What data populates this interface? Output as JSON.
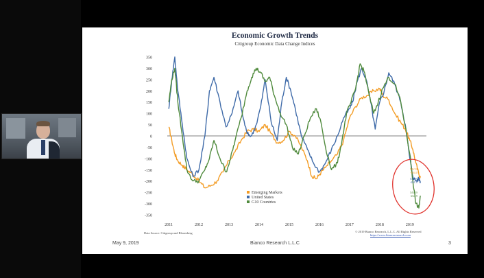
{
  "slide": {
    "date": "May 9, 2019",
    "firm": "Bianco Research L.L.C",
    "page_number": "3",
    "source": "Data Source: Citigroup and Bloomberg",
    "copyright": "© 2019 Bianco Research, L.L.C. All Rights Reserved",
    "copyright_link": "https://www.biancoresearch.com",
    "latest_labels": {
      "em": "5/8/19\n-184.0",
      "us": "5/8/19\n-201.8",
      "g10": "5/8/19\n-264.9"
    }
  },
  "colors": {
    "em": "#f39c24",
    "us": "#3e6aa8",
    "g10": "#4f8a3c",
    "circle": "#e0302a"
  },
  "chart_data": {
    "type": "line",
    "title": "Economic Growth Trends",
    "subtitle": "Citigroup  Economic Data Change Indices",
    "xlabel": "",
    "ylabel": "",
    "x_ticks": [
      "2011",
      "2012",
      "2013",
      "2014",
      "2015",
      "2016",
      "2017",
      "2018",
      "2019"
    ],
    "y_ticks": [
      350,
      300,
      250,
      200,
      150,
      100,
      50,
      0,
      -50,
      -100,
      -150,
      -200,
      -250,
      -300,
      -350
    ],
    "ylim": [
      -350,
      350
    ],
    "xlim": [
      2010.95,
      2019.55
    ],
    "grid": false,
    "legend_position": "bottom-left",
    "series": [
      {
        "name": "Emerging Markets",
        "key": "em",
        "x": [
          2011.0,
          2011.1,
          2011.2,
          2011.3,
          2011.45,
          2011.6,
          2011.8,
          2012.0,
          2012.2,
          2012.4,
          2012.6,
          2012.8,
          2013.0,
          2013.2,
          2013.4,
          2013.6,
          2013.8,
          2014.0,
          2014.2,
          2014.4,
          2014.6,
          2014.8,
          2015.0,
          2015.2,
          2015.4,
          2015.6,
          2015.75,
          2015.9,
          2016.0,
          2016.2,
          2016.4,
          2016.6,
          2016.8,
          2017.0,
          2017.2,
          2017.4,
          2017.6,
          2017.8,
          2018.0,
          2018.1,
          2018.3,
          2018.5,
          2018.7,
          2018.85,
          2019.0,
          2019.1,
          2019.2,
          2019.3,
          2019.35
        ],
        "y": [
          40,
          -20,
          -80,
          -110,
          -130,
          -150,
          -170,
          -200,
          -230,
          -220,
          -200,
          -160,
          -110,
          -70,
          -20,
          20,
          30,
          20,
          50,
          10,
          -30,
          -20,
          20,
          0,
          -50,
          -110,
          -180,
          -190,
          -170,
          -140,
          -110,
          -80,
          -20,
          80,
          130,
          170,
          180,
          200,
          210,
          180,
          160,
          100,
          60,
          30,
          -20,
          -60,
          -120,
          -170,
          -184
        ]
      },
      {
        "name": "United States",
        "key": "us",
        "x": [
          2011.0,
          2011.1,
          2011.2,
          2011.3,
          2011.45,
          2011.6,
          2011.8,
          2012.0,
          2012.2,
          2012.35,
          2012.5,
          2012.7,
          2012.9,
          2013.1,
          2013.3,
          2013.45,
          2013.6,
          2013.75,
          2013.9,
          2014.05,
          2014.2,
          2014.4,
          2014.6,
          2014.75,
          2014.9,
          2015.05,
          2015.2,
          2015.4,
          2015.6,
          2015.8,
          2016.0,
          2016.2,
          2016.4,
          2016.6,
          2016.8,
          2017.0,
          2017.1,
          2017.25,
          2017.4,
          2017.55,
          2017.7,
          2017.85,
          2018.0,
          2018.15,
          2018.3,
          2018.5,
          2018.7,
          2018.85,
          2019.0,
          2019.1,
          2019.2,
          2019.3,
          2019.35
        ],
        "y": [
          120,
          250,
          350,
          200,
          50,
          -100,
          -180,
          -150,
          0,
          200,
          260,
          150,
          40,
          100,
          200,
          90,
          10,
          0,
          50,
          130,
          250,
          60,
          -20,
          150,
          260,
          200,
          120,
          0,
          -60,
          -120,
          -160,
          -120,
          -60,
          0,
          80,
          120,
          150,
          240,
          300,
          250,
          150,
          30,
          150,
          200,
          280,
          230,
          150,
          50,
          -100,
          -180,
          -200,
          -190,
          -202
        ]
      },
      {
        "name": "G10 Countries",
        "key": "g10",
        "x": [
          2011.0,
          2011.1,
          2011.2,
          2011.3,
          2011.45,
          2011.6,
          2011.8,
          2012.0,
          2012.2,
          2012.35,
          2012.5,
          2012.7,
          2012.9,
          2013.05,
          2013.2,
          2013.4,
          2013.6,
          2013.75,
          2013.9,
          2014.05,
          2014.2,
          2014.35,
          2014.5,
          2014.7,
          2014.9,
          2015.1,
          2015.3,
          2015.5,
          2015.7,
          2015.9,
          2016.05,
          2016.2,
          2016.4,
          2016.6,
          2016.75,
          2016.9,
          2017.05,
          2017.2,
          2017.35,
          2017.5,
          2017.65,
          2017.8,
          2017.95,
          2018.1,
          2018.3,
          2018.5,
          2018.7,
          2018.85,
          2019.0,
          2019.1,
          2019.2,
          2019.3,
          2019.35
        ],
        "y": [
          150,
          250,
          300,
          150,
          0,
          -150,
          -200,
          -200,
          -150,
          -100,
          -20,
          -100,
          -160,
          -100,
          -20,
          80,
          200,
          260,
          300,
          280,
          240,
          260,
          180,
          100,
          50,
          -50,
          -80,
          0,
          80,
          120,
          60,
          -50,
          -150,
          -120,
          -20,
          100,
          150,
          210,
          320,
          280,
          180,
          100,
          150,
          210,
          260,
          230,
          150,
          40,
          -80,
          -200,
          -300,
          -320,
          -265
        ]
      }
    ]
  }
}
